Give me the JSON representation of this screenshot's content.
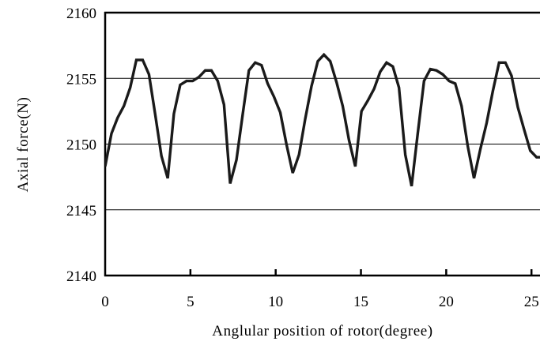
{
  "chart_data": {
    "type": "line",
    "title": "",
    "xlabel": "Anglular position of rotor(degree)",
    "ylabel": "Axial force(N)",
    "xlim": [
      0,
      25.5
    ],
    "ylim": [
      2140,
      2160
    ],
    "x_ticks": [
      0,
      5,
      10,
      15,
      20,
      25
    ],
    "x_tick_labels": [
      "0",
      "5",
      "10",
      "15",
      "20",
      "25"
    ],
    "y_ticks": [
      2140,
      2145,
      2150,
      2155,
      2160
    ],
    "y_tick_labels": [
      "2140",
      "2145",
      "2150",
      "2155",
      "2160"
    ],
    "grid": "horizontal",
    "legend": "none",
    "line_color": "#1a1a1a",
    "series": [
      {
        "x": [
          0,
          0.37,
          0.73,
          1.1,
          1.47,
          1.83,
          2.2,
          2.57,
          2.93,
          3.3,
          3.67,
          4.03,
          4.4,
          4.77,
          5.13,
          5.5,
          5.87,
          6.23,
          6.6,
          6.97,
          7.33,
          7.7,
          8.07,
          8.43,
          8.8,
          9.17,
          9.53,
          9.9,
          10.27,
          10.63,
          11.0,
          11.37,
          11.73,
          12.1,
          12.47,
          12.83,
          13.2,
          13.57,
          13.93,
          14.3,
          14.67,
          15.03,
          15.4,
          15.77,
          16.13,
          16.5,
          16.87,
          17.23,
          17.6,
          17.97,
          18.33,
          18.7,
          19.07,
          19.43,
          19.8,
          20.17,
          20.53,
          20.9,
          21.27,
          21.63,
          22.0,
          22.37,
          22.73,
          23.1,
          23.47,
          23.83,
          24.2,
          24.57,
          24.93,
          25.3,
          25.5
        ],
        "values": [
          2148.3,
          2150.8,
          2152.0,
          2152.9,
          2154.3,
          2156.4,
          2156.4,
          2155.3,
          2152.3,
          2149.1,
          2147.4,
          2152.3,
          2154.5,
          2154.8,
          2154.8,
          2155.1,
          2155.6,
          2155.6,
          2154.8,
          2153.0,
          2147.0,
          2148.8,
          2152.3,
          2155.6,
          2156.2,
          2156.0,
          2154.6,
          2153.6,
          2152.4,
          2150.0,
          2147.8,
          2149.2,
          2151.9,
          2154.4,
          2156.3,
          2156.8,
          2156.3,
          2154.7,
          2152.9,
          2150.3,
          2148.3,
          2152.5,
          2153.3,
          2154.2,
          2155.5,
          2156.2,
          2155.9,
          2154.3,
          2149.2,
          2146.8,
          2150.8,
          2154.8,
          2155.7,
          2155.6,
          2155.3,
          2154.8,
          2154.6,
          2152.9,
          2149.8,
          2147.4,
          2149.6,
          2151.6,
          2154.0,
          2156.2,
          2156.2,
          2155.2,
          2152.8,
          2151.1,
          2149.5,
          2149.0,
          2149.0
        ]
      }
    ]
  }
}
